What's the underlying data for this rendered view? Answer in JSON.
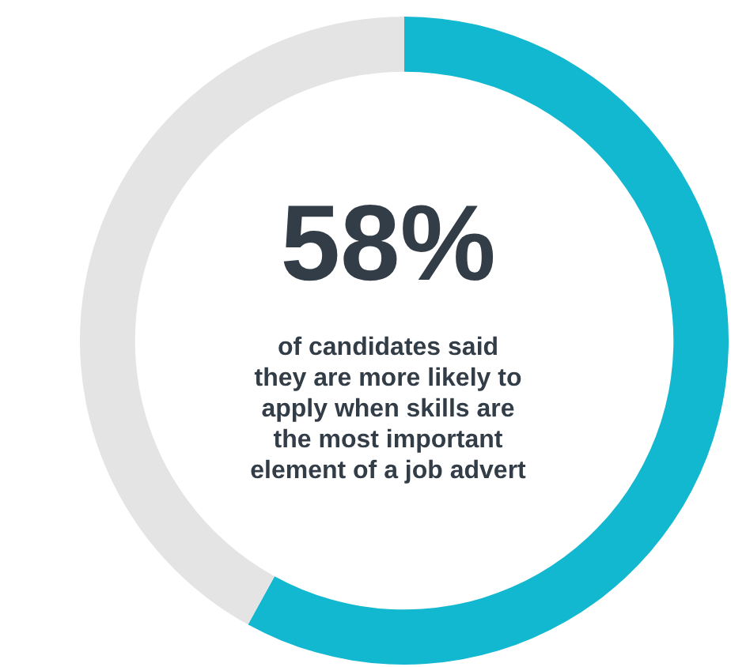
{
  "chart_data": {
    "type": "donut",
    "categories": [
      null,
      null
    ],
    "values": [
      58,
      42
    ],
    "colors": [
      "#12b7d0",
      "#e4e4e4"
    ],
    "annotations": [
      "58%",
      "of candidates said\nthey are more likely to\napply when skills are\nthe most important\nelement of a job advert"
    ]
  }
}
